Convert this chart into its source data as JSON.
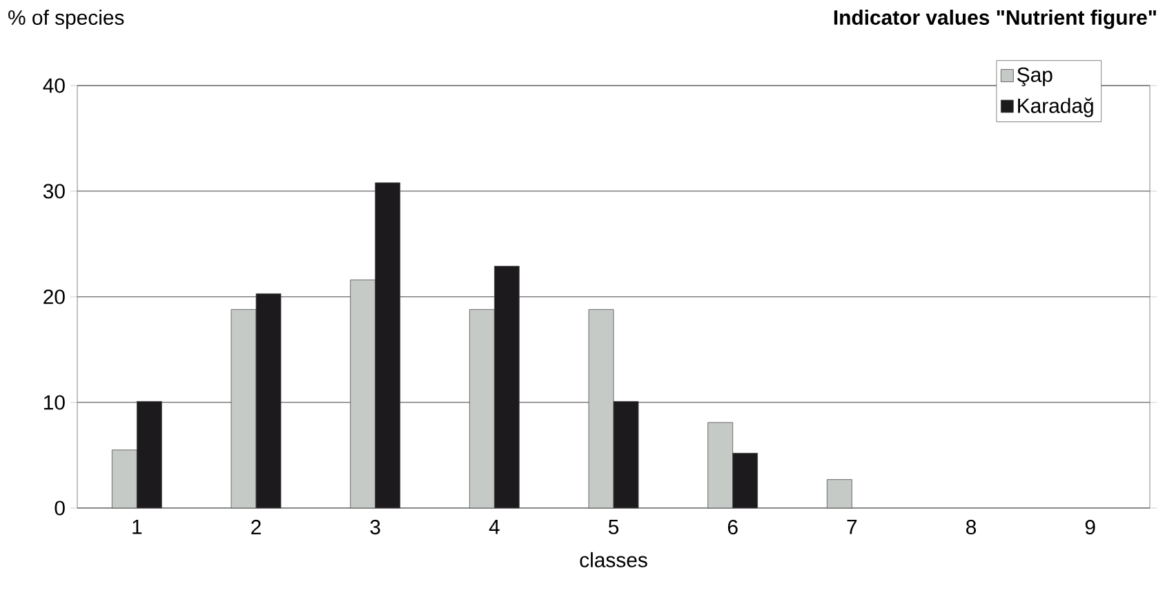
{
  "chart_data": {
    "type": "bar",
    "title": "Indicator values \"Nutrient figure\"",
    "ylabel": "% of species",
    "xlabel": "classes",
    "categories": [
      "1",
      "2",
      "3",
      "4",
      "5",
      "6",
      "7",
      "8",
      "9"
    ],
    "series": [
      {
        "name": "Şap",
        "color": "#c6cac6",
        "values": [
          5.5,
          18.8,
          21.6,
          18.8,
          18.8,
          8.1,
          2.7,
          0,
          0
        ]
      },
      {
        "name": "Karadağ",
        "color": "#1c1a1c",
        "values": [
          10.1,
          20.3,
          30.8,
          22.9,
          10.1,
          5.2,
          0,
          0,
          0
        ]
      }
    ],
    "ylim": [
      0,
      40
    ],
    "yticks": [
      0,
      10,
      20,
      30,
      40
    ],
    "grid": "y",
    "legend": "top right"
  }
}
